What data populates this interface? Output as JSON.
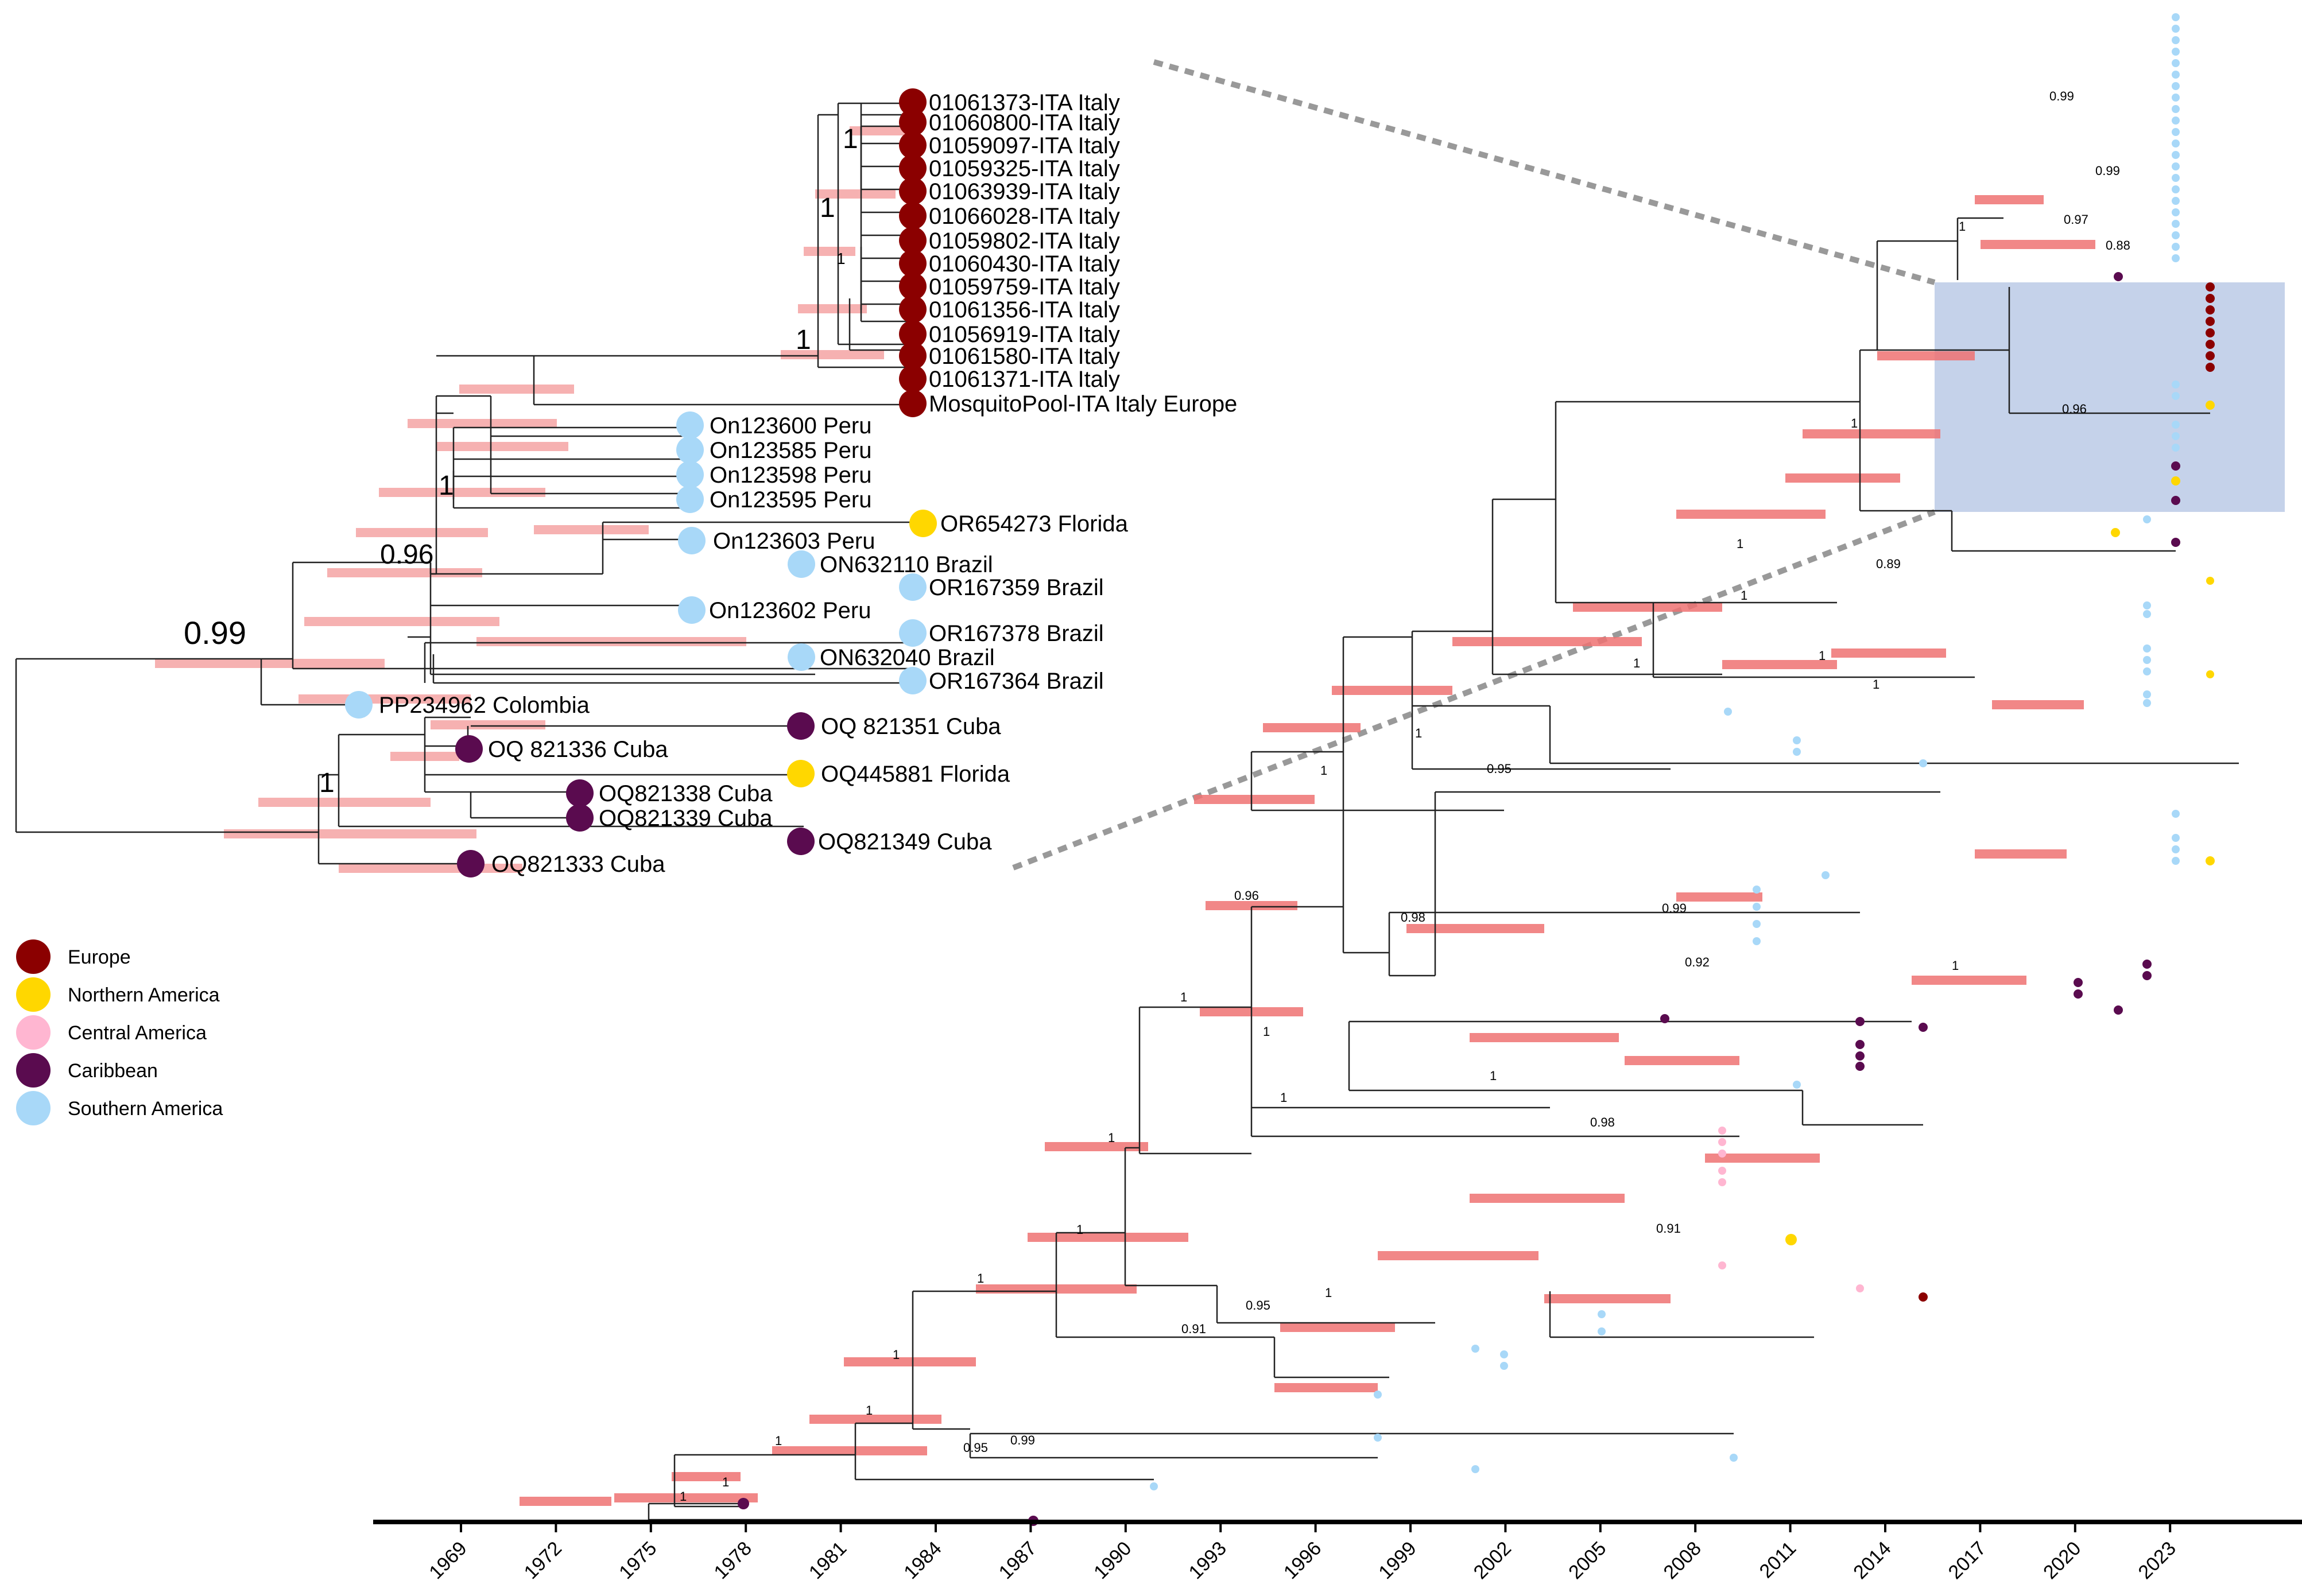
{
  "colors": {
    "europe": "#8b0000",
    "northern_america": "#ffd700",
    "central_america": "#ffb6d1",
    "caribbean": "#5a0b4f",
    "southern_america": "#a8d8f8",
    "hpd_bar": "#f08080",
    "highlight_box": "#c5d2ea"
  },
  "legend": [
    {
      "label": "Europe",
      "region": "europe"
    },
    {
      "label": "Northern America",
      "region": "northern_america"
    },
    {
      "label": "Central America",
      "region": "central_america"
    },
    {
      "label": "Caribbean",
      "region": "caribbean"
    },
    {
      "label": "Southern America",
      "region": "southern_america"
    }
  ],
  "inset_tree": {
    "leaves": [
      {
        "label": "01061373-ITA Italy",
        "region": "europe"
      },
      {
        "label": "01060800-ITA Italy",
        "region": "europe"
      },
      {
        "label": "01059097-ITA Italy",
        "region": "europe"
      },
      {
        "label": "01059325-ITA Italy",
        "region": "europe"
      },
      {
        "label": "01063939-ITA Italy",
        "region": "europe"
      },
      {
        "label": "01066028-ITA Italy",
        "region": "europe"
      },
      {
        "label": "01059802-ITA Italy",
        "region": "europe"
      },
      {
        "label": "01060430-ITA Italy",
        "region": "europe"
      },
      {
        "label": "01059759-ITA Italy",
        "region": "europe"
      },
      {
        "label": "01061356-ITA Italy",
        "region": "europe"
      },
      {
        "label": "01056919-ITA Italy",
        "region": "europe"
      },
      {
        "label": "01061580-ITA Italy",
        "region": "europe"
      },
      {
        "label": "01061371-ITA Italy",
        "region": "europe"
      },
      {
        "label": "MosquitoPool-ITA Italy Europe",
        "region": "europe"
      },
      {
        "label": "On123600 Peru",
        "region": "southern_america"
      },
      {
        "label": "On123585 Peru",
        "region": "southern_america"
      },
      {
        "label": "On123598 Peru",
        "region": "southern_america"
      },
      {
        "label": "On123595 Peru",
        "region": "southern_america"
      },
      {
        "label": "OR654273 Florida",
        "region": "northern_america"
      },
      {
        "label": "On123603 Peru",
        "region": "southern_america"
      },
      {
        "label": "ON632110 Brazil",
        "region": "southern_america"
      },
      {
        "label": "OR167359 Brazil",
        "region": "southern_america"
      },
      {
        "label": "On123602 Peru",
        "region": "southern_america"
      },
      {
        "label": "OR167378 Brazil",
        "region": "southern_america"
      },
      {
        "label": "ON632040 Brazil",
        "region": "southern_america"
      },
      {
        "label": "OR167364 Brazil",
        "region": "southern_america"
      },
      {
        "label": "PP234962 Colombia",
        "region": "southern_america"
      },
      {
        "label": "OQ 821351 Cuba",
        "region": "caribbean"
      },
      {
        "label": "OQ 821336 Cuba",
        "region": "caribbean"
      },
      {
        "label": "OQ445881 Florida",
        "region": "northern_america"
      },
      {
        "label": "OQ821338 Cuba",
        "region": "caribbean"
      },
      {
        "label": "OQ821339 Cuba",
        "region": "caribbean"
      },
      {
        "label": "OQ821349 Cuba",
        "region": "caribbean"
      },
      {
        "label": "OQ821333 Cuba",
        "region": "caribbean"
      }
    ],
    "support_values": [
      "1",
      "1",
      "1",
      "1",
      "1",
      "0.96",
      "0.99",
      "1"
    ]
  },
  "main_tree": {
    "axis_ticks": [
      "1969",
      "1972",
      "1975",
      "1978",
      "1981",
      "1984",
      "1987",
      "1990",
      "1993",
      "1996",
      "1999",
      "2002",
      "2005",
      "2008",
      "2011",
      "2014",
      "2017",
      "2020",
      "2023"
    ],
    "support_values": [
      "0.99",
      "1",
      "1",
      "0.96",
      "1",
      "0.89",
      "1",
      "1",
      "1",
      "1",
      "1",
      "1",
      "0.95",
      "0.98",
      "0.99",
      "0.92",
      "0.96",
      "1",
      "1",
      "1",
      "1",
      "1",
      "0.98",
      "0.91",
      "1",
      "1",
      "0.95",
      "1",
      "0.91",
      "1",
      "1",
      "1",
      "0.95",
      "0.99",
      "1",
      "1",
      "1",
      "0.99",
      "0.97",
      "0.88"
    ]
  }
}
